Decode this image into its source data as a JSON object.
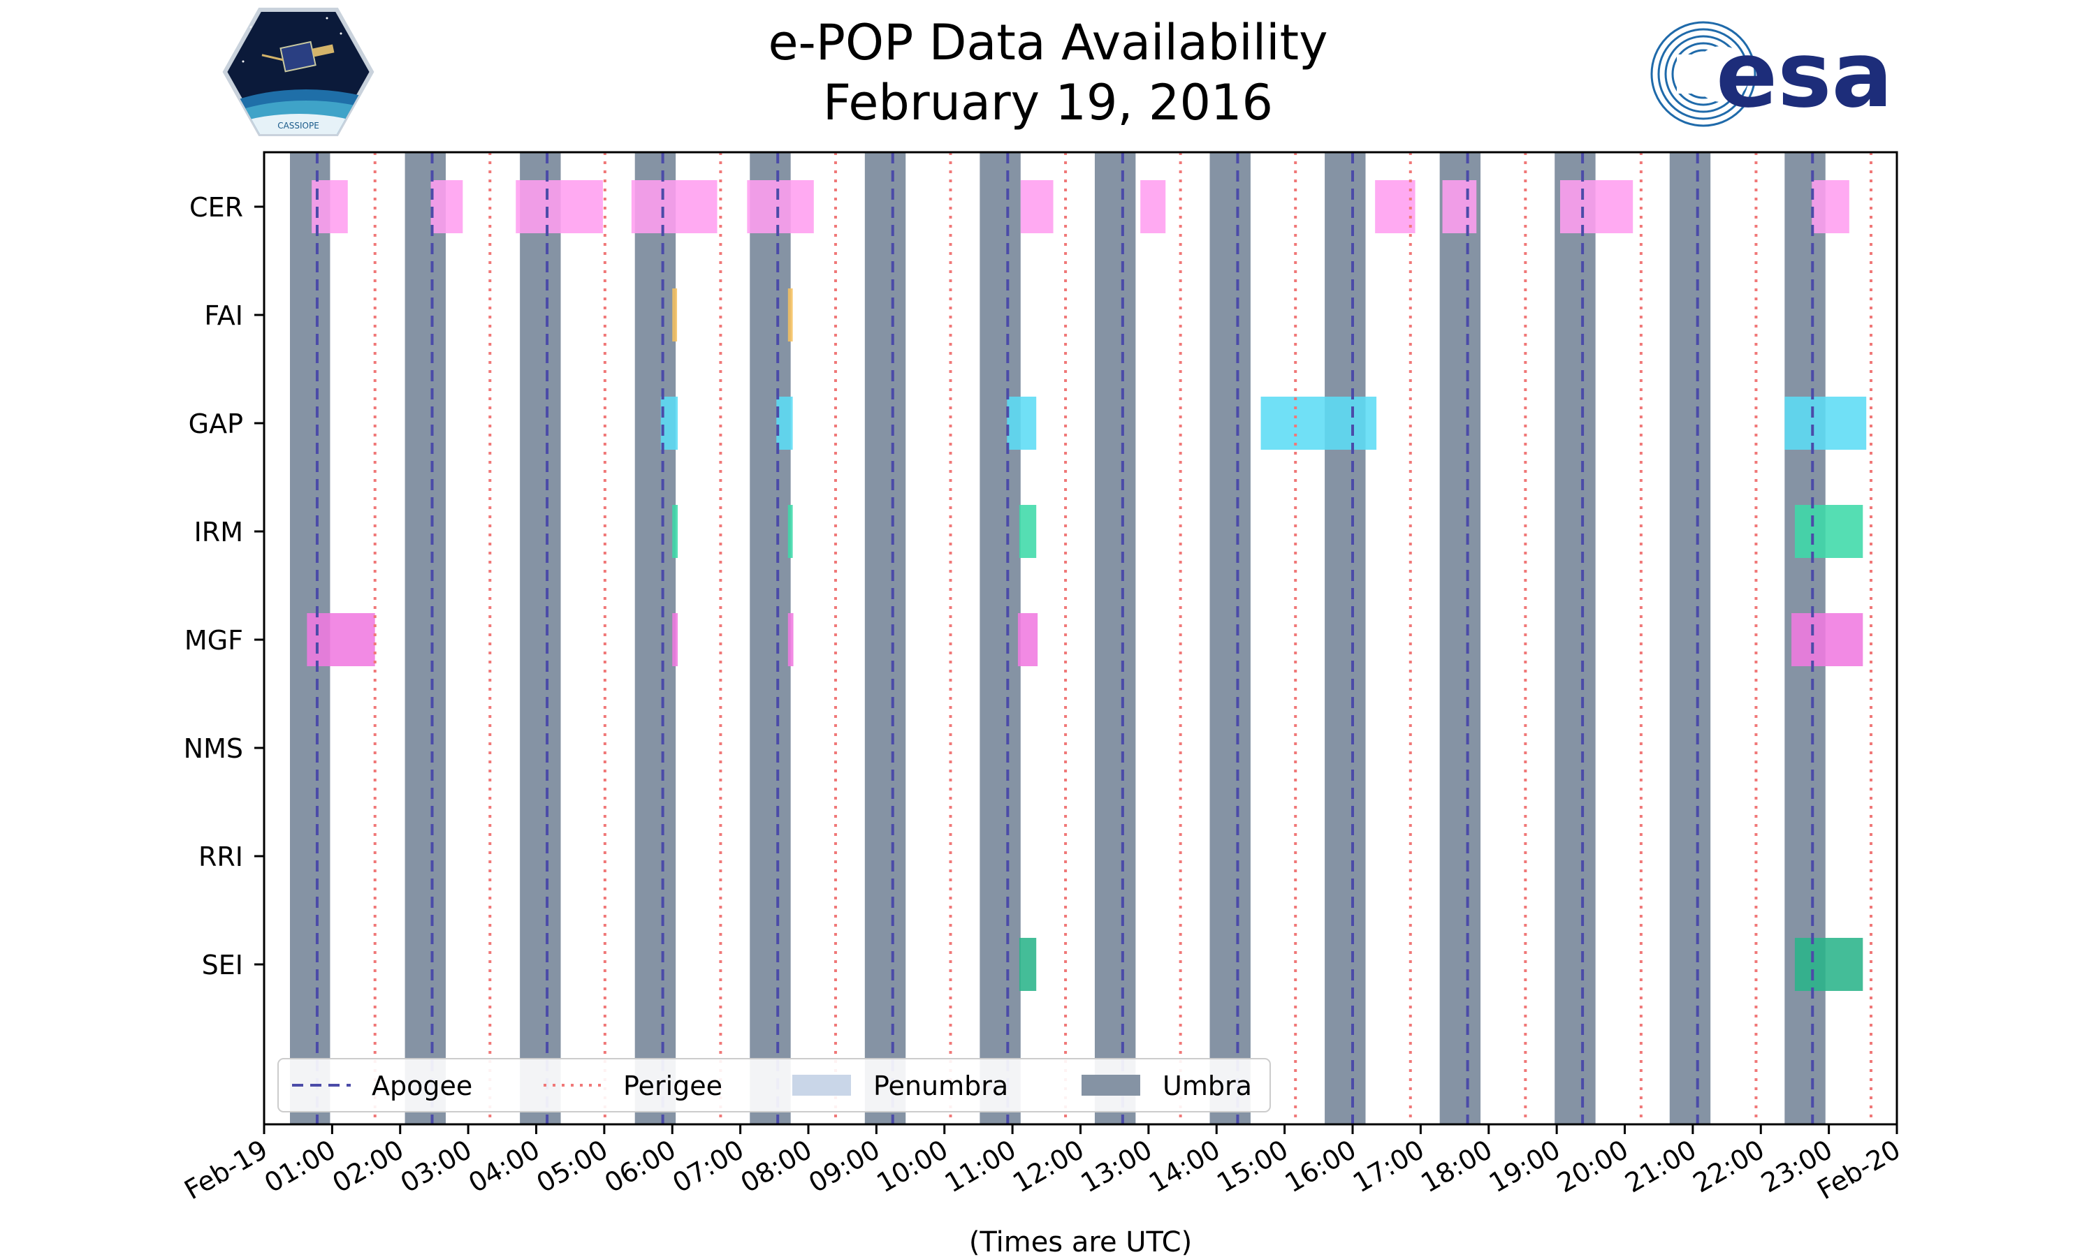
{
  "title": "e-POP Data Availability",
  "subtitle": "February 19, 2016",
  "logos": {
    "left": {
      "name": "cassiope-mission-badge",
      "text": "CASSIOPE"
    },
    "right": {
      "name": "esa-logo",
      "text": "esa"
    }
  },
  "colors": {
    "apogee": "#4b4ba8",
    "perigee": "#f07878",
    "penumbra": "#c9d6e8",
    "umbra": "#8593a4",
    "CER": "#ff9ef0",
    "FAI": "#f5c060",
    "GAP": "#5cdcf5",
    "IRM": "#3ddaa8",
    "MGF": "#f07ae0",
    "SEI": "#2ab48a"
  },
  "chart_data": {
    "type": "timeline",
    "title": "e-POP Data Availability",
    "subtitle": "February 19, 2016",
    "xlabel": "(Times are UTC)",
    "x_unit": "hours UTC",
    "xlim": [
      0,
      24
    ],
    "xtick_labels": [
      "Feb-19",
      "01:00",
      "02:00",
      "03:00",
      "04:00",
      "05:00",
      "06:00",
      "07:00",
      "08:00",
      "09:00",
      "10:00",
      "11:00",
      "12:00",
      "13:00",
      "14:00",
      "15:00",
      "16:00",
      "17:00",
      "18:00",
      "19:00",
      "20:00",
      "21:00",
      "22:00",
      "23:00",
      "Feb-20"
    ],
    "instruments": [
      "CER",
      "FAI",
      "GAP",
      "IRM",
      "MGF",
      "NMS",
      "RRI",
      "SEI"
    ],
    "legend": {
      "position": "bottom-left",
      "entries": [
        "Apogee",
        "Perigee",
        "Penumbra",
        "Umbra"
      ]
    },
    "umbra": [
      [
        0.38,
        0.97
      ],
      [
        2.07,
        2.67
      ],
      [
        3.76,
        4.36
      ],
      [
        5.45,
        6.05
      ],
      [
        7.14,
        7.74
      ],
      [
        8.83,
        9.43
      ],
      [
        10.52,
        11.12
      ],
      [
        12.21,
        12.81
      ],
      [
        13.9,
        14.5
      ],
      [
        15.59,
        16.19
      ],
      [
        17.28,
        17.88
      ],
      [
        18.97,
        19.57
      ],
      [
        20.66,
        21.26
      ],
      [
        22.35,
        22.95
      ]
    ],
    "apogee": [
      0.78,
      2.47,
      4.16,
      5.86,
      7.55,
      9.24,
      10.93,
      12.62,
      14.31,
      16.0,
      17.69,
      19.38,
      21.07,
      22.76
    ],
    "perigee": [
      1.63,
      3.32,
      5.01,
      6.71,
      8.4,
      10.09,
      11.78,
      13.47,
      15.16,
      16.85,
      18.54,
      20.24,
      21.93,
      23.62
    ],
    "availability": {
      "CER": [
        [
          0.7,
          1.23
        ],
        [
          2.45,
          2.92
        ],
        [
          3.7,
          4.98
        ],
        [
          5.4,
          6.66
        ],
        [
          7.1,
          8.08
        ],
        [
          11.12,
          11.6
        ],
        [
          12.88,
          13.25
        ],
        [
          16.33,
          16.92
        ],
        [
          17.32,
          17.82
        ],
        [
          19.05,
          20.12
        ],
        [
          22.75,
          23.3
        ]
      ],
      "FAI": [
        [
          6.0,
          6.07
        ],
        [
          7.7,
          7.77
        ]
      ],
      "GAP": [
        [
          5.83,
          6.08
        ],
        [
          7.53,
          7.77
        ],
        [
          10.92,
          11.35
        ],
        [
          14.65,
          16.35
        ],
        [
          22.35,
          23.55
        ]
      ],
      "IRM": [
        [
          6.0,
          6.08
        ],
        [
          7.7,
          7.77
        ],
        [
          11.1,
          11.35
        ],
        [
          22.5,
          23.5
        ]
      ],
      "MGF": [
        [
          0.63,
          1.63
        ],
        [
          6.0,
          6.08
        ],
        [
          7.7,
          7.78
        ],
        [
          11.08,
          11.37
        ],
        [
          22.45,
          23.5
        ]
      ],
      "NMS": [],
      "RRI": [],
      "SEI": [
        [
          11.1,
          11.35
        ],
        [
          22.5,
          23.5
        ]
      ]
    }
  }
}
